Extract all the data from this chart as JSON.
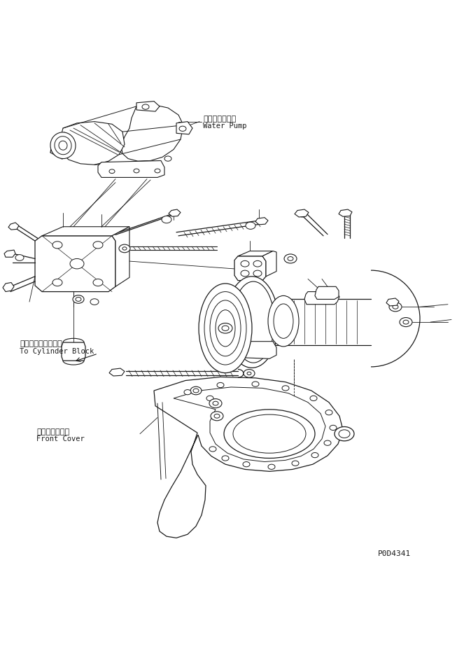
{
  "background_color": "#ffffff",
  "line_color": "#1a1a1a",
  "labels": {
    "water_pump_jp": "ウォータポンプ",
    "water_pump_en": "Water Pump",
    "cylinder_block_jp": "シリンダブロックへ",
    "cylinder_block_en": "To Cylinder Block",
    "front_cover_jp": "フロントカバー",
    "front_cover_en": "Front Cover",
    "part_number": "P0D4341"
  },
  "figsize": [
    6.73,
    9.28
  ],
  "dpi": 100
}
